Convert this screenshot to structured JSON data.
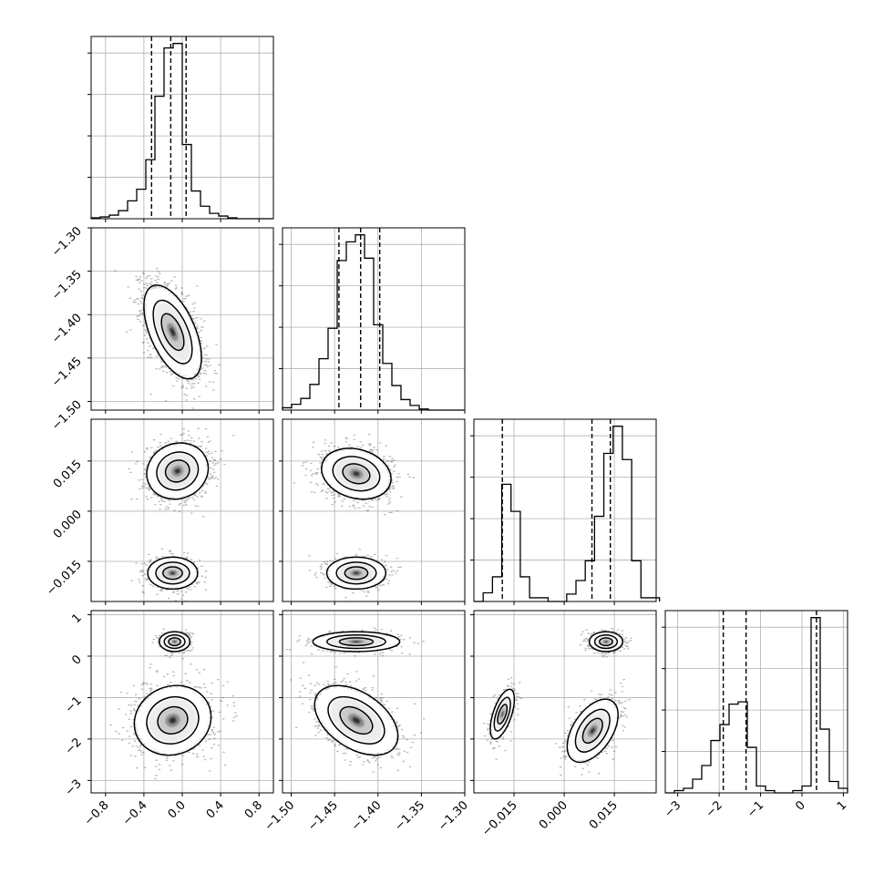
{
  "chart_data": {
    "type": "corner",
    "grid": true,
    "variables": [
      {
        "index": 0,
        "range": [
          -0.95,
          0.95
        ],
        "ticks": [
          "-0.8",
          "-0.4",
          "0.0",
          "0.4",
          "0.8"
        ],
        "tick_values": [
          -0.8,
          -0.4,
          0.0,
          0.4,
          0.8
        ],
        "quantiles": [
          -0.32,
          -0.12,
          0.04
        ]
      },
      {
        "index": 1,
        "range": [
          -1.51,
          -1.3
        ],
        "ticks": [
          "-1.30",
          "-1.35",
          "-1.40",
          "-1.45",
          "-1.50"
        ],
        "x_ticks": [
          "-1.50",
          "-1.45",
          "-1.40",
          "-1.35",
          "-1.30"
        ],
        "tick_values": [
          -1.5,
          -1.45,
          -1.4,
          -1.35,
          -1.3
        ],
        "quantiles": [
          -1.445,
          -1.42,
          -1.398
        ]
      },
      {
        "index": 2,
        "range": [
          -0.027,
          0.0275
        ],
        "ticks": [
          "0.015",
          "0.000",
          "-0.015"
        ],
        "x_ticks": [
          "-0.015",
          "0.000",
          "0.015"
        ],
        "tick_values": [
          -0.015,
          0.0,
          0.015
        ],
        "quantiles": [
          -0.0185,
          0.0083,
          0.0138
        ]
      },
      {
        "index": 3,
        "range": [
          -3.3,
          1.1
        ],
        "ticks": [
          "1",
          "0",
          "-1",
          "-2",
          "-3"
        ],
        "x_ticks": [
          "-3",
          "-2",
          "-1",
          "0",
          "1"
        ],
        "tick_values": [
          -3,
          -2,
          -1,
          0,
          1
        ],
        "quantiles": [
          -1.9,
          -1.35,
          0.35
        ]
      }
    ],
    "histograms": [
      {
        "var": 0,
        "bin_start": -0.95,
        "bin_width": 0.095,
        "counts": [
          1,
          2,
          4,
          9,
          20,
          33,
          66,
          137,
          191,
          196,
          83,
          31,
          14,
          6,
          3,
          1,
          0,
          0,
          0,
          0
        ]
      },
      {
        "var": 1,
        "bin_start": -1.51,
        "bin_width": 0.0105,
        "counts": [
          2,
          5,
          10,
          22,
          44,
          70,
          128,
          144,
          150,
          130,
          73,
          40,
          21,
          9,
          4,
          1,
          0,
          0,
          0,
          0
        ]
      },
      {
        "var": 2,
        "bin_start": -0.027,
        "bin_width": 0.002775,
        "counts": [
          0,
          7,
          20,
          95,
          73,
          20,
          3,
          3,
          0,
          0,
          6,
          17,
          33,
          69,
          120,
          142,
          115,
          33,
          3,
          3
        ]
      },
      {
        "var": 3,
        "bin_start": -3.3,
        "bin_width": 0.22,
        "counts": [
          0,
          1,
          2,
          6,
          12,
          23,
          30,
          39,
          40,
          20,
          3,
          1,
          0,
          0,
          1,
          3,
          77,
          28,
          5,
          2
        ]
      }
    ],
    "joint": [
      {
        "row": 1,
        "col": 0,
        "modes": [
          {
            "x": -0.1,
            "y": -1.42,
            "sx": 0.15,
            "sy": 0.027,
            "rho": -0.55,
            "w": 1
          }
        ]
      },
      {
        "row": 2,
        "col": 0,
        "modes": [
          {
            "x": -0.05,
            "y": 0.012,
            "sx": 0.16,
            "sy": 0.0042,
            "rho": 0.1,
            "w": 0.68
          },
          {
            "x": -0.1,
            "y": -0.0185,
            "sx": 0.13,
            "sy": 0.0024,
            "rho": 0.0,
            "w": 0.32
          }
        ]
      },
      {
        "row": 2,
        "col": 1,
        "modes": [
          {
            "x": -1.425,
            "y": 0.0112,
            "sx": 0.02,
            "sy": 0.0038,
            "rho": -0.2,
            "w": 0.68
          },
          {
            "x": -1.425,
            "y": -0.0185,
            "sx": 0.017,
            "sy": 0.0024,
            "rho": 0.0,
            "w": 0.32
          }
        ]
      },
      {
        "row": 3,
        "col": 0,
        "modes": [
          {
            "x": -0.08,
            "y": 0.35,
            "sx": 0.08,
            "sy": 0.12,
            "rho": 0.0,
            "w": 0.32
          },
          {
            "x": -0.1,
            "y": -1.55,
            "sx": 0.2,
            "sy": 0.42,
            "rho": 0.1,
            "w": 0.68
          }
        ]
      },
      {
        "row": 3,
        "col": 1,
        "modes": [
          {
            "x": -1.425,
            "y": 0.35,
            "sx": 0.025,
            "sy": 0.12,
            "rho": 0.0,
            "w": 0.32
          },
          {
            "x": -1.425,
            "y": -1.55,
            "sx": 0.024,
            "sy": 0.42,
            "rho": -0.45,
            "w": 0.68
          }
        ]
      },
      {
        "row": 3,
        "col": 2,
        "modes": [
          {
            "x": 0.0125,
            "y": 0.35,
            "sx": 0.0025,
            "sy": 0.12,
            "rho": 0.0,
            "w": 0.32
          },
          {
            "x": -0.0185,
            "y": -1.4,
            "sx": 0.0018,
            "sy": 0.3,
            "rho": 0.6,
            "w": 0.25
          },
          {
            "x": 0.0085,
            "y": -1.8,
            "sx": 0.0038,
            "sy": 0.38,
            "rho": 0.5,
            "w": 0.43
          }
        ]
      }
    ]
  }
}
